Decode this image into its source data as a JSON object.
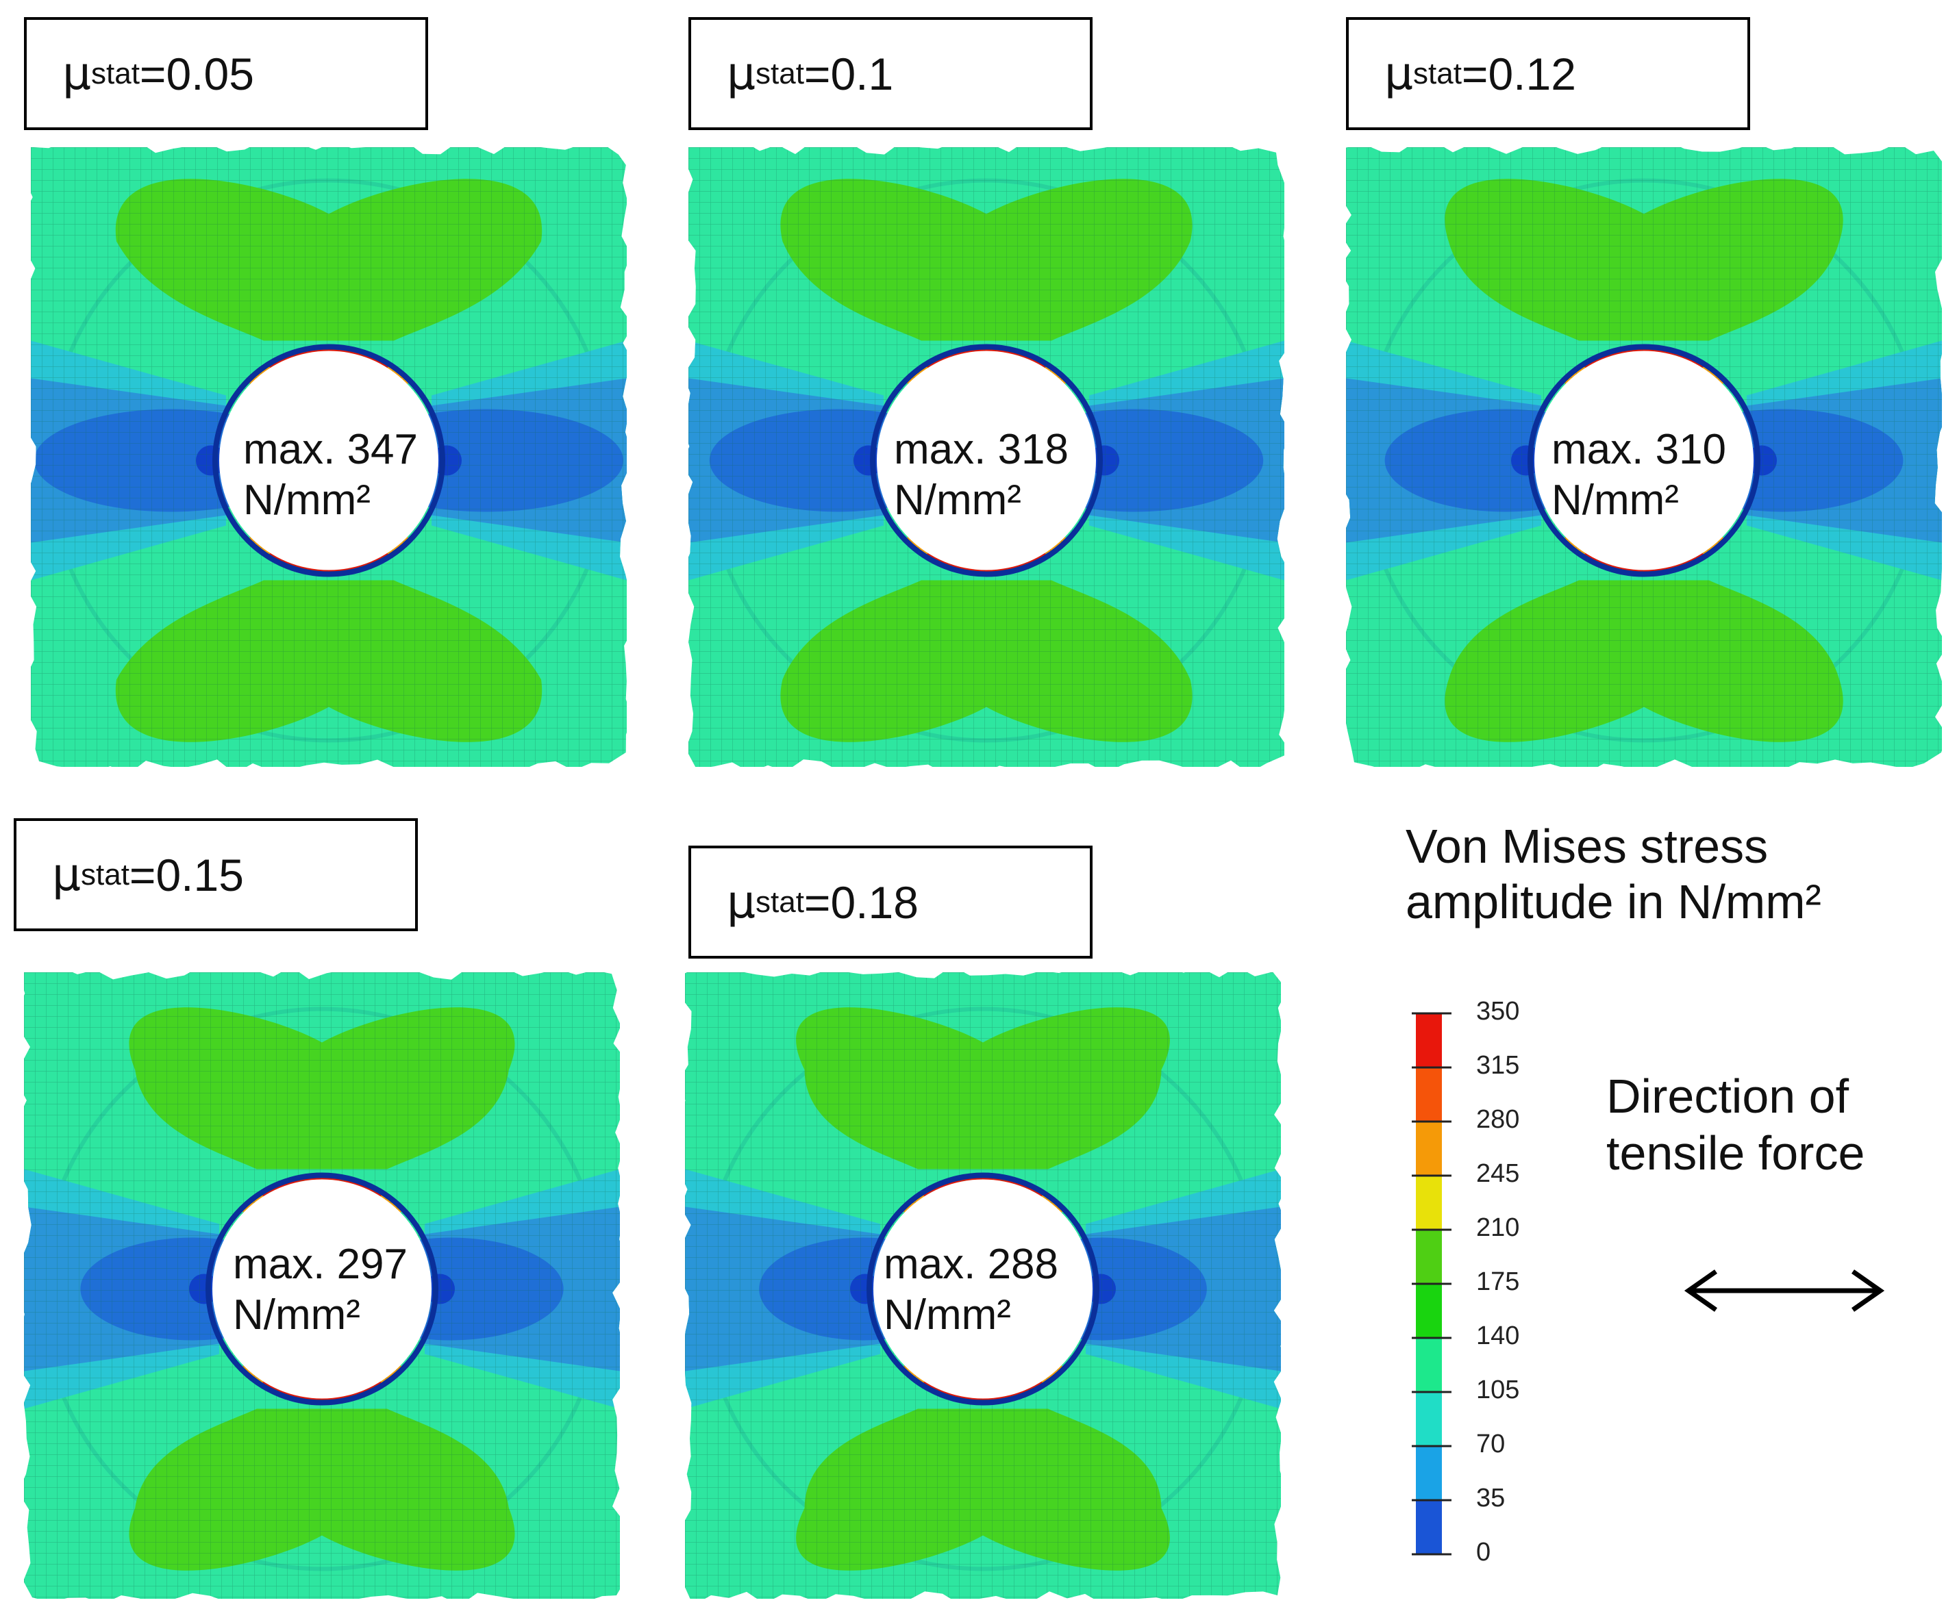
{
  "panels": [
    {
      "mu_symbol": "μ",
      "mu_subscript": "stat",
      "mu_value": "=0.05",
      "max_line1": "max. 347",
      "max_line2": "N/mm²"
    },
    {
      "mu_symbol": "μ",
      "mu_subscript": "stat",
      "mu_value": "=0.1",
      "max_line1": "max. 318",
      "max_line2": "N/mm²"
    },
    {
      "mu_symbol": "μ",
      "mu_subscript": "stat",
      "mu_value": "=0.12",
      "max_line1": "max. 310",
      "max_line2": "N/mm²"
    },
    {
      "mu_symbol": "μ",
      "mu_subscript": "stat",
      "mu_value": "=0.15",
      "max_line1": "max. 297",
      "max_line2": "N/mm²"
    },
    {
      "mu_symbol": "μ",
      "mu_subscript": "stat",
      "mu_value": "=0.18",
      "max_line1": "max. 288",
      "max_line2": "N/mm²"
    }
  ],
  "legend": {
    "title_line1": "Von Mises stress",
    "title_line2": "amplitude in N/mm²",
    "ticks": [
      "350",
      "315",
      "280",
      "245",
      "210",
      "175",
      "140",
      "105",
      "70",
      "35",
      "0"
    ],
    "band_colors": [
      "#e8170c",
      "#f5540a",
      "#f59a08",
      "#e8e10a",
      "#4fcf14",
      "#19d40f",
      "#1de88c",
      "#20ddc6",
      "#1aa3e6",
      "#1a55d6",
      "#1212b8"
    ]
  },
  "direction": {
    "line1": "Direction of",
    "line2": "tensile force"
  },
  "colors": {
    "background_field": "#2ee6a0",
    "lobe_green": "#46d421",
    "blue_band": "#2a8fd8",
    "deep_blue": "#1040c8",
    "hot_red": "#e01a0a",
    "orange": "#f5a00a"
  }
}
